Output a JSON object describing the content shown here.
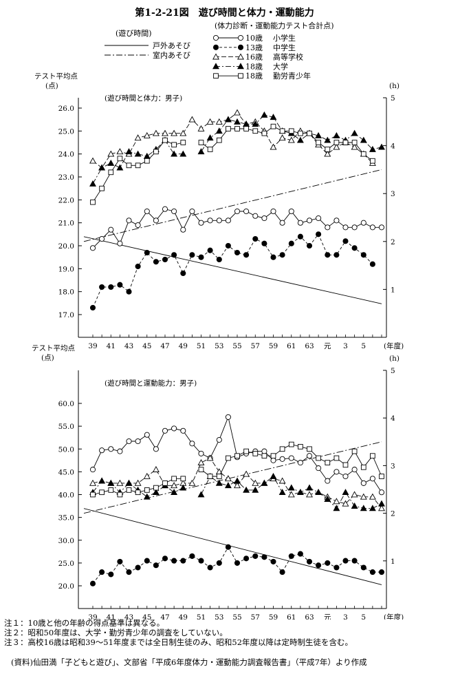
{
  "title": "第1-2-21図　遊び時間と体力・運動能力",
  "legend": {
    "time_header": "(遊び時間)",
    "time_items": [
      "戸外あそび",
      "室内あそび"
    ],
    "score_header": "(体力診断・運動能力テスト合計点)",
    "score_items": [
      {
        "age": "10歳",
        "label": "小学生"
      },
      {
        "age": "13歳",
        "label": "中学生"
      },
      {
        "age": "16歳",
        "label": "高等学校"
      },
      {
        "age": "18歳",
        "label": "大学"
      },
      {
        "age": "18歳",
        "label": "勤労青少年"
      }
    ]
  },
  "chart_data": [
    {
      "type": "line",
      "subtitle": "(遊び時間と体力：男子)",
      "ylabel": "テスト平均点",
      "ylabel_unit": "(点)",
      "y2label": "(h)",
      "xlabel": "(年度)",
      "ylim": [
        17,
        26
      ],
      "y2lim": [
        0,
        5
      ],
      "yticks": [
        "17.0",
        "18.0",
        "19.0",
        "20.0",
        "21.0",
        "22.0",
        "23.0",
        "24.0",
        "25.0",
        "26.0"
      ],
      "y2ticks": [
        "1",
        "2",
        "3",
        "4",
        "5"
      ],
      "x_tick_labels": [
        "39",
        "41",
        "43",
        "45",
        "47",
        "49",
        "51",
        "53",
        "55",
        "57",
        "59",
        "61",
        "63",
        "元",
        "3",
        "5"
      ],
      "series": [
        {
          "name": "10歳 小学生",
          "values": [
            19.9,
            20.3,
            20.7,
            20.1,
            21.1,
            20.9,
            21.5,
            21.1,
            21.6,
            21.5,
            20.7,
            21.5,
            21.0,
            21.1,
            21.1,
            21.1,
            21.5,
            21.5,
            21.3,
            21.2,
            21.5,
            21.0,
            21.5,
            21.0,
            21.1,
            21.2,
            20.8,
            21.1,
            20.8,
            20.8,
            21.0,
            20.8,
            20.8
          ]
        },
        {
          "name": "13歳 中学生",
          "values": [
            17.3,
            18.2,
            18.2,
            18.3,
            18.0,
            19.1,
            19.7,
            19.3,
            19.4,
            19.6,
            18.8,
            19.6,
            19.5,
            19.8,
            19.4,
            20.0,
            19.7,
            19.6,
            20.3,
            20.1,
            19.5,
            19.6,
            20.1,
            20.4,
            20.0,
            20.5,
            19.6,
            19.6,
            20.2,
            19.9,
            19.6,
            19.2,
            null
          ]
        },
        {
          "name": "16歳 高等学校",
          "values": [
            23.7,
            23.4,
            24.0,
            24.1,
            24.0,
            24.7,
            24.8,
            24.9,
            24.9,
            24.9,
            24.9,
            25.5,
            25.1,
            25.4,
            25.4,
            25.5,
            25.8,
            25.3,
            25.4,
            25.0,
            24.3,
            24.7,
            24.6,
            25.0,
            24.9,
            24.4,
            24.0,
            24.3,
            24.5,
            24.3,
            24.0,
            23.6,
            null
          ]
        },
        {
          "name": "18歳 大学",
          "values": [
            22.7,
            23.4,
            23.6,
            23.4,
            24.1,
            24.0,
            23.9,
            24.2,
            24.6,
            24.0,
            24.0,
            null,
            24.1,
            24.7,
            25.0,
            25.5,
            25.4,
            25.3,
            25.3,
            25.7,
            25.6,
            25.0,
            24.9,
            24.6,
            24.9,
            24.8,
            24.6,
            24.8,
            24.6,
            24.9,
            24.6,
            24.2,
            24.3
          ]
        },
        {
          "name": "18歳 勤労青少年",
          "values": [
            21.9,
            22.5,
            23.2,
            23.8,
            23.5,
            23.5,
            23.7,
            24.1,
            24.6,
            24.4,
            24.5,
            null,
            24.5,
            24.2,
            24.6,
            25.1,
            25.1,
            25.1,
            25.0,
            24.9,
            25.2,
            25.0,
            25.0,
            24.9,
            24.9,
            24.5,
            24.2,
            24.5,
            24.5,
            24.5,
            24.0,
            23.7,
            null
          ]
        }
      ],
      "time_series": [
        {
          "name": "戸外あそび",
          "start": 2.1,
          "end": 0.7
        },
        {
          "name": "室内あそび",
          "start": 2.0,
          "end": 3.5
        }
      ]
    },
    {
      "type": "line",
      "subtitle": "(遊び時間と運動能力：男子)",
      "ylabel": "テスト平均点",
      "ylabel_unit": "(点)",
      "y2label": "(h)",
      "xlabel": "(年度)",
      "ylim": [
        20,
        60
      ],
      "y2lim": [
        0,
        5
      ],
      "yticks": [
        "20.0",
        "25.0",
        "30.0",
        "35.0",
        "40.0",
        "45.0",
        "50.0",
        "55.0",
        "60.0"
      ],
      "y2ticks": [
        "1",
        "2",
        "3",
        "4",
        "5"
      ],
      "x_tick_labels": [
        "39",
        "41",
        "43",
        "45",
        "47",
        "49",
        "51",
        "53",
        "55",
        "57",
        "59",
        "61",
        "63",
        "元",
        "3",
        "5"
      ],
      "series": [
        {
          "name": "10歳 小学生",
          "values": [
            45.5,
            49.7,
            50.0,
            49.5,
            51.7,
            51.7,
            53.1,
            50.0,
            54.0,
            54.5,
            54.0,
            51.2,
            49.0,
            48.0,
            52.0,
            57.0,
            48.2,
            49.0,
            49.5,
            49.5,
            47.5,
            47.8,
            48.0,
            47.0,
            48.5,
            45.8,
            43.0,
            45.0,
            44.0,
            45.5,
            42.5,
            43.5,
            40.5
          ]
        },
        {
          "name": "13歳 中学生",
          "values": [
            20.5,
            23.0,
            22.5,
            25.3,
            23.0,
            24.0,
            25.5,
            24.5,
            26.0,
            25.5,
            25.5,
            26.5,
            25.5,
            24.0,
            25.0,
            28.5,
            25.0,
            26.0,
            26.5,
            26.3,
            25.3,
            23.0,
            26.5,
            27.0,
            25.3,
            24.5,
            25.0,
            24.0,
            25.5,
            25.5,
            24.0,
            23.0,
            23.0
          ]
        },
        {
          "name": "16歳 高等学校",
          "values": [
            42.5,
            43.0,
            42.5,
            42.5,
            42.5,
            42.5,
            44.0,
            45.5,
            42.0,
            42.0,
            42.5,
            42.5,
            47.0,
            48.0,
            45.0,
            43.5,
            42.0,
            44.5,
            42.5,
            42.5,
            43.5,
            43.0,
            40.0,
            40.5,
            40.0,
            40.5,
            39.5,
            38.5,
            38.0,
            40.0,
            39.5,
            39.5,
            37.0
          ]
        },
        {
          "name": "18歳 大学",
          "values": [
            40.5,
            43.0,
            42.5,
            40.5,
            42.5,
            41.0,
            39.5,
            40.5,
            42.0,
            40.5,
            41.5,
            null,
            40.0,
            44.0,
            42.5,
            42.0,
            43.0,
            41.0,
            41.0,
            42.5,
            44.0,
            40.5,
            41.5,
            40.5,
            41.5,
            40.5,
            39.0,
            37.0,
            40.5,
            37.5,
            37.0,
            37.0,
            38.0
          ]
        },
        {
          "name": "18歳 勤労青少年",
          "values": [
            40.0,
            40.5,
            41.0,
            40.0,
            41.0,
            40.5,
            41.0,
            41.5,
            42.5,
            43.5,
            43.5,
            null,
            45.5,
            44.0,
            44.0,
            48.0,
            48.5,
            49.5,
            49.0,
            48.5,
            48.5,
            50.0,
            51.0,
            50.5,
            50.0,
            48.0,
            47.0,
            48.0,
            46.5,
            49.5,
            46.0,
            48.5,
            44.0
          ]
        }
      ],
      "time_series": [
        {
          "name": "戸外あそび",
          "start": 2.1,
          "end": 0.5
        },
        {
          "name": "室内あそび",
          "start": 2.0,
          "end": 3.5
        }
      ]
    }
  ],
  "notes": [
    {
      "label": "注１：",
      "text": "10歳と他の年齢の得点基準は異なる。"
    },
    {
      "label": "注２：",
      "text": "昭和50年度は、大学・勤労青少年の調査をしていない。"
    },
    {
      "label": "注３：",
      "text": "高校16歳は昭和39～51年度までは全日制生徒のみ、昭和52年度以降は定時制生徒を含む。"
    }
  ],
  "source": {
    "label": "(資料)",
    "text": "仙田満「子どもと遊び」、文部省「平成6年度体力・運動能力調査報告書」（平成7年）より作成"
  }
}
